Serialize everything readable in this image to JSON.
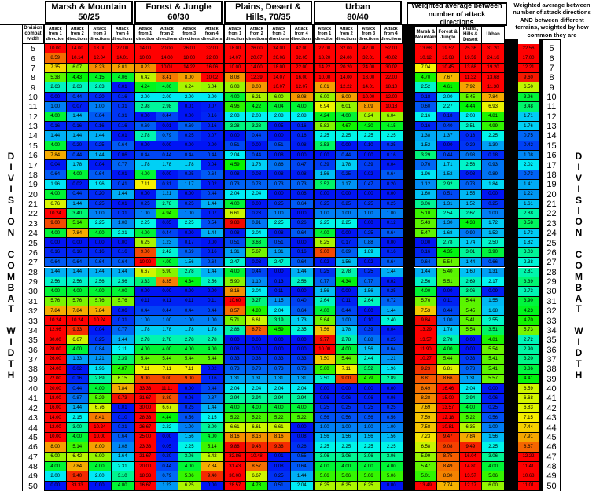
{
  "ui": {
    "left_column_header": "Division combat width",
    "attack_headers": [
      "Attack from 1 direction",
      "Attack from 2 directions",
      "Attack from 3 directions",
      "Attack from 4 directions"
    ],
    "terrain_groups": [
      {
        "line1": "Marsh & Mountain",
        "line2": "50/25"
      },
      {
        "line1": "Forest & Jungle",
        "line2": "60/30"
      },
      {
        "line1": "Plains, Desert &",
        "line2": "Hills, 70/35"
      },
      {
        "line1": "Urban",
        "line2": "80/40"
      }
    ],
    "weighted_header": "Weighted average between number of attack directions",
    "weighted_subheaders": [
      "Marsh & Mountain",
      "Forest & Jungle",
      "Plains, Hills & Desert",
      "Urban"
    ],
    "right_header": "Weighted average between number of attack directions AND between different terrains, weighted by how common they are",
    "side_label": "DIVISION COMBAT WIDTH",
    "side_label_words": [
      "DIVISION",
      "COMBAT",
      "WIDTH"
    ]
  },
  "chart_data": {
    "type": "heatmap",
    "title": "Division combat width efficiency table by terrain and number of attack directions",
    "row_label": "Division combat width",
    "row_range": [
      5,
      50
    ],
    "column_groups": [
      "Marsh & Mountain 50/25",
      "Forest & Jungle 60/30",
      "Plains, Desert & Hills, 70/35",
      "Urban 80/40",
      "Weighted average between number of attack directions",
      "Overall weighted average"
    ],
    "columns_per_terrain": [
      "Attack from 1 direction",
      "Attack from 2 directions",
      "Attack from 3 directions",
      "Attack from 4 directions"
    ],
    "color_scale": {
      "low_value": 0,
      "high_value": 10,
      "low_color": "#0022ff",
      "mid_color": "#00cc00",
      "high_color": "#ff0000"
    },
    "row_order": "cw, marsh x4, forest x4, plains x4, urban x4, weighted x4, overall",
    "rows": [
      [
        5,
        10,
        14,
        18,
        22,
        14,
        20,
        26,
        32,
        18,
        26,
        34,
        42,
        22,
        32,
        42,
        52,
        13.68,
        19.52,
        25.36,
        31.2,
        22.56
      ],
      [
        6,
        8.59,
        10.14,
        12.04,
        14.01,
        10,
        14,
        18,
        22,
        14.07,
        20.07,
        26.06,
        32.05,
        18.2,
        24,
        32.01,
        40.02,
        10.12,
        13.68,
        19.59,
        24.16,
        17
      ],
      [
        7,
        7.35,
        6.07,
        8.23,
        8.01,
        8.23,
        10.01,
        14.22,
        16.06,
        10,
        14,
        18,
        22,
        14.22,
        20.2,
        24,
        30.02,
        7.04,
        10.45,
        13.68,
        19.2,
        12.21
      ],
      [
        8,
        5.38,
        4.43,
        4.15,
        4.06,
        6.42,
        8.41,
        8,
        10.02,
        8.08,
        12.39,
        14.07,
        16,
        10,
        14,
        18,
        22,
        4.7,
        7.67,
        11.32,
        13.68,
        9.6
      ],
      [
        9,
        2.63,
        2.63,
        2.63,
        0.01,
        4.24,
        4,
        6.24,
        6.04,
        6.08,
        8.08,
        10.07,
        12.07,
        8.01,
        12.22,
        14.01,
        18.1,
        2.52,
        4.61,
        7.92,
        11.3,
        6.5
      ],
      [
        10,
        0,
        0.44,
        0.2,
        0.16,
        2,
        2,
        2,
        2,
        4,
        6.21,
        6,
        8.08,
        6,
        8,
        10,
        12,
        0.18,
        2,
        5.45,
        7.84,
        3.96
      ],
      [
        11,
        1,
        0.07,
        1,
        0.31,
        2.98,
        2.98,
        0.01,
        0.07,
        4.96,
        4.22,
        4.04,
        4,
        6.94,
        6.01,
        8.09,
        10.18,
        0.6,
        2.27,
        4.44,
        6.93,
        3.48
      ],
      [
        12,
        4,
        1.44,
        0.64,
        0.31,
        0,
        0.44,
        0,
        0.16,
        2.08,
        2.08,
        2.08,
        2.08,
        4.24,
        4,
        6.24,
        6.04,
        2.16,
        0.18,
        2.08,
        4.81,
        1.71
      ],
      [
        13,
        0.16,
        0.16,
        0.16,
        0.16,
        0.69,
        0.01,
        0.69,
        0.16,
        3.28,
        3.28,
        0.05,
        0.16,
        5.82,
        4.67,
        4.3,
        4.15,
        0.16,
        0.4,
        2.51,
        4.99,
        1.76
      ],
      [
        14,
        1.44,
        1.44,
        1.44,
        0.01,
        2.78,
        0.79,
        0.25,
        0.07,
        0,
        0.44,
        0,
        0.16,
        2.25,
        2.25,
        2.25,
        2.25,
        1.38,
        1.37,
        0.18,
        2.25,
        0.75
      ],
      [
        15,
        4,
        0.2,
        0.25,
        0.64,
        0,
        0,
        0,
        0,
        0.51,
        0,
        0.51,
        0.08,
        3.53,
        0,
        0.1,
        0.25,
        1.52,
        0,
        0.29,
        1.3,
        0.42
      ],
      [
        16,
        7.84,
        0.44,
        1.44,
        0.06,
        0.44,
        0.44,
        0.44,
        0.44,
        2.04,
        0.44,
        0.08,
        0,
        0,
        0.44,
        0,
        0.16,
        3.29,
        0.44,
        0.93,
        0.18,
        1.08
      ],
      [
        17,
        0.04,
        1.78,
        0.04,
        0.77,
        1.78,
        1.78,
        1.78,
        0.04,
        4.59,
        1.78,
        0.86,
        0.47,
        0.39,
        1.78,
        0.39,
        0.04,
        0.76,
        1.71,
        2.56,
        0.93,
        2.02
      ],
      [
        18,
        0.64,
        4,
        0.64,
        0.01,
        4,
        0,
        0.25,
        0.64,
        0.08,
        0.08,
        0.08,
        0.08,
        1.56,
        0.25,
        0.02,
        0.64,
        1.96,
        1.52,
        0.08,
        0.89,
        0.73
      ],
      [
        19,
        1.96,
        0.02,
        1.96,
        0.41,
        7.11,
        0.31,
        1.17,
        0.02,
        0.73,
        0.73,
        0.73,
        0.73,
        3.52,
        1.17,
        0.47,
        0.2,
        1.12,
        2.92,
        0.73,
        1.84,
        1.41
      ],
      [
        20,
        4,
        0.44,
        0.2,
        1.44,
        0,
        1.21,
        0,
        0.44,
        2.04,
        2.04,
        0,
        0.08,
        0,
        0,
        0,
        0,
        1.6,
        0.51,
        1.55,
        0,
        1.22
      ],
      [
        21,
        6.76,
        1.44,
        0.25,
        0.01,
        0.25,
        2.78,
        0.25,
        1.44,
        4,
        0,
        0.25,
        0.64,
        0.25,
        0.25,
        0.25,
        0.25,
        3.06,
        1.31,
        1.52,
        0.25,
        1.61
      ],
      [
        22,
        10.24,
        3.4,
        1,
        0.31,
        1,
        4.94,
        1,
        0.07,
        6.61,
        0.23,
        1,
        0,
        1,
        1,
        1,
        1,
        5.1,
        2.54,
        2.67,
        1,
        2.88
      ],
      [
        23,
        9,
        5.14,
        2.25,
        1.08,
        2.25,
        0.05,
        2.25,
        0.54,
        9.88,
        0.91,
        2.25,
        0.26,
        2.25,
        2.25,
        0,
        0.12,
        5.43,
        1.3,
        4.38,
        1.72,
        3.58
      ],
      [
        24,
        4,
        7.84,
        4,
        2.31,
        4,
        0.44,
        0,
        1.44,
        0.08,
        2.04,
        0.08,
        0.64,
        4,
        0,
        0.25,
        0.64,
        5.47,
        1.68,
        0.9,
        1.52,
        1.73
      ],
      [
        25,
        0,
        0,
        0,
        0,
        6.25,
        1.23,
        0.17,
        0,
        0.51,
        3.63,
        0.51,
        0,
        6.25,
        0.17,
        0.88,
        0,
        0,
        2.78,
        1.74,
        2.5,
        1.82
      ],
      [
        26,
        0.16,
        0.16,
        0.16,
        0.16,
        9,
        2.42,
        0.69,
        0.16,
        1.31,
        5.67,
        1.31,
        0.16,
        9,
        0.69,
        1.89,
        0.16,
        0.16,
        4.35,
        3.01,
        3.9,
        3.03
      ],
      [
        27,
        0.64,
        0.64,
        0.64,
        0.64,
        10,
        4,
        1.56,
        0.64,
        2.47,
        0.08,
        2.47,
        0.64,
        0.02,
        1.56,
        0.02,
        0.64,
        0.64,
        5.54,
        1.44,
        0.66,
        2.38
      ],
      [
        28,
        1.44,
        1.44,
        1.44,
        1.44,
        6.67,
        5.9,
        2.78,
        1.44,
        4,
        0.44,
        0,
        1.44,
        0.25,
        2.78,
        0.25,
        1.44,
        1.44,
        5.4,
        1.6,
        1.31,
        2.81
      ],
      [
        29,
        2.56,
        2.56,
        2.56,
        2.56,
        3.33,
        8.35,
        4.34,
        2.56,
        5.9,
        1.1,
        0.13,
        2.56,
        0.77,
        4.34,
        0.77,
        0.02,
        2.56,
        5.51,
        2.69,
        2.17,
        3.39
      ],
      [
        30,
        4,
        4,
        4,
        4,
        0,
        0,
        0,
        0,
        8.16,
        2.04,
        0.11,
        0,
        1.56,
        0,
        1.56,
        0.25,
        4,
        0,
        3.06,
        0.09,
        2.73
      ],
      [
        31,
        5.76,
        5.76,
        5.76,
        5.76,
        0.11,
        0.11,
        0.11,
        0.11,
        10.6,
        3.27,
        1.15,
        0.4,
        2.64,
        0.11,
        2.64,
        0.72,
        5.76,
        0.11,
        5.44,
        1.55,
        3.9
      ],
      [
        32,
        7.84,
        7.84,
        7.84,
        0.06,
        0.44,
        0.44,
        0.44,
        0.44,
        8.57,
        4.8,
        2.04,
        0.64,
        4,
        0.44,
        0,
        1.44,
        7.53,
        0.44,
        5.45,
        1.68,
        4.23
      ],
      [
        33,
        10.24,
        10.24,
        10.24,
        0.31,
        1,
        1,
        1,
        1,
        5.71,
        6.61,
        3.19,
        1.73,
        5.64,
        1,
        0.1,
        2.4,
        9.84,
        1,
        5.41,
        2.55,
        4.7
      ],
      [
        34,
        12.96,
        9.33,
        0.04,
        0.77,
        1.78,
        1.78,
        1.78,
        1.78,
        2.88,
        8.72,
        4.59,
        2.35,
        7.56,
        1.78,
        0.39,
        0.04,
        13.29,
        1.78,
        5.54,
        3.51,
        5.73
      ],
      [
        35,
        30,
        6.67,
        0.25,
        1.44,
        2.78,
        2.78,
        2.78,
        2.78,
        0,
        0,
        0,
        0,
        9.77,
        2.78,
        0.88,
        0.25,
        13.57,
        2.78,
        0,
        4.81,
        2.72
      ],
      [
        36,
        28,
        4,
        0.84,
        2.11,
        4,
        4,
        4,
        4,
        0.08,
        0,
        0,
        0,
        10,
        4,
        1.56,
        0.64,
        11.9,
        4,
        0,
        5.54,
        2.9
      ],
      [
        37,
        26,
        1.33,
        1.21,
        3.39,
        5.44,
        5.44,
        5.44,
        5.44,
        0.33,
        0.33,
        0.33,
        0.33,
        7.5,
        5.44,
        2.44,
        1.21,
        10.27,
        5.44,
        0.33,
        5.41,
        3.2
      ],
      [
        38,
        24,
        0.02,
        1.96,
        4.87,
        7.11,
        7.11,
        7.11,
        0.02,
        0.73,
        0.73,
        0.73,
        0.73,
        5,
        7.11,
        3.52,
        1.96,
        9.23,
        6.81,
        0.73,
        5.41,
        3.86
      ],
      [
        39,
        22,
        0.16,
        2.89,
        6.15,
        9,
        9,
        9,
        0.16,
        1.31,
        1.31,
        1.31,
        1.31,
        2.5,
        9,
        4.79,
        2.89,
        8.81,
        8.66,
        1.31,
        5.57,
        4.41
      ],
      [
        40,
        20,
        0.44,
        4,
        7.84,
        33.33,
        11.11,
        0,
        0.44,
        2.04,
        2.04,
        2.04,
        2.04,
        0,
        0,
        0,
        0,
        8.49,
        16.46,
        2.04,
        0,
        6.59
      ],
      [
        41,
        18,
        0.87,
        5.29,
        9.73,
        31.67,
        8.89,
        0.06,
        0.87,
        2.94,
        2.94,
        2.94,
        2.94,
        0.06,
        0.06,
        0.06,
        0.06,
        8.28,
        15,
        2.94,
        0.06,
        6.68
      ],
      [
        42,
        16,
        1.44,
        6.76,
        0.01,
        30,
        6.67,
        0.25,
        1.44,
        4,
        4,
        4,
        4,
        0.25,
        0.25,
        0.25,
        0.25,
        7.69,
        13.57,
        4,
        0.25,
        6.83
      ],
      [
        43,
        14,
        2.15,
        8.41,
        0.1,
        28.33,
        4.44,
        0.56,
        2.15,
        5.22,
        5.22,
        5.22,
        5.22,
        0.56,
        0.56,
        0.56,
        0.56,
        7.59,
        12.18,
        5.22,
        0.56,
        7.15
      ],
      [
        44,
        12,
        3,
        10.24,
        0.31,
        26.67,
        2.22,
        1,
        3,
        6.61,
        6.61,
        6.61,
        0,
        1,
        1,
        1,
        1,
        7.58,
        10.81,
        6.35,
        1,
        7.44
      ],
      [
        45,
        10,
        4,
        10,
        0.64,
        25,
        0,
        1.56,
        4,
        8.16,
        8.16,
        8.16,
        0.08,
        1.56,
        1.56,
        1.56,
        1.56,
        7.23,
        9.47,
        7.84,
        1.56,
        7.91
      ],
      [
        46,
        8,
        5.14,
        8,
        1.08,
        23.33,
        0.05,
        2.25,
        5.14,
        9.88,
        9.48,
        9.38,
        0.26,
        2.25,
        2.25,
        2.25,
        2.25,
        6.58,
        9.08,
        9.49,
        2.25,
        8.67
      ],
      [
        47,
        6,
        6.42,
        6,
        1.64,
        21.67,
        0.2,
        3.06,
        6.42,
        32.86,
        10.48,
        0.01,
        0.55,
        3.06,
        3.06,
        3.06,
        3.06,
        5.99,
        8.75,
        16.04,
        3.06,
        12.22
      ],
      [
        48,
        4,
        7.84,
        4,
        2.31,
        20,
        0.44,
        4,
        7.84,
        31.43,
        8.57,
        0.08,
        0.64,
        4,
        4,
        4,
        4,
        5.47,
        8.49,
        14.8,
        4,
        11.41
      ],
      [
        49,
        2,
        9.4,
        2,
        3.1,
        18.33,
        0.79,
        5.06,
        9.4,
        30,
        6.67,
        0.25,
        1.44,
        5.06,
        5.06,
        5.06,
        5.06,
        5.01,
        8.3,
        13.57,
        5.06,
        10.68
      ],
      [
        50,
        0,
        33.33,
        0,
        4,
        16.67,
        1.23,
        6.25,
        0,
        28.57,
        4.78,
        0.51,
        2.04,
        6.25,
        6.25,
        6.25,
        0,
        13.49,
        7.74,
        12.17,
        6,
        11.01
      ]
    ]
  }
}
